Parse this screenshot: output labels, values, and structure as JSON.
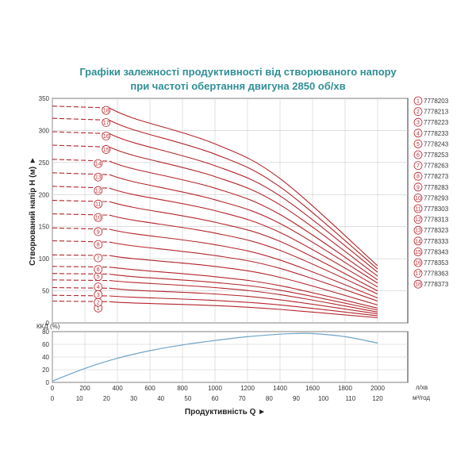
{
  "title_line1": "Графіки залежності продуктивності від створюваного напору",
  "title_line2": "при частоті обертання двигуна 2850 об/хв",
  "colors": {
    "curve": "#b3252b",
    "efficiency": "#6fa3c7",
    "title": "#2f8f96",
    "grid": "#cccccc"
  },
  "chart_data": [
    {
      "type": "line",
      "ylabel": "Створюваний напір Н (м) ►",
      "ylim": [
        0,
        350
      ],
      "yticks": [
        0,
        50,
        100,
        150,
        200,
        250,
        300,
        350
      ],
      "xlim": [
        0,
        2000
      ],
      "grid": true,
      "legend_position": "right",
      "dashed_segment_end_x": 350,
      "series": [
        {
          "name": "7778203",
          "marker": "1",
          "values": [
            [
              0,
              34
            ],
            [
              350,
              33
            ],
            [
              500,
              31
            ],
            [
              1000,
              27
            ],
            [
              1400,
              21
            ],
            [
              2000,
              8
            ]
          ]
        },
        {
          "name": "7778213",
          "marker": "2",
          "values": [
            [
              0,
              43
            ],
            [
              350,
              42
            ],
            [
              500,
              40
            ],
            [
              1000,
              35
            ],
            [
              1400,
              28
            ],
            [
              2000,
              11
            ]
          ]
        },
        {
          "name": "7778223",
          "marker": "3",
          "values": [
            [
              0,
              55
            ],
            [
              350,
              54
            ],
            [
              500,
              51
            ],
            [
              1000,
              45
            ],
            [
              1400,
              36
            ],
            [
              2000,
              14
            ]
          ]
        },
        {
          "name": "7778233",
          "marker": "4",
          "values": [
            [
              0,
              67
            ],
            [
              350,
              66
            ],
            [
              500,
              63
            ],
            [
              1000,
              55
            ],
            [
              1400,
              44
            ],
            [
              2000,
              17
            ]
          ]
        },
        {
          "name": "7778243",
          "marker": "5",
          "values": [
            [
              0,
              77
            ],
            [
              350,
              76
            ],
            [
              500,
              72
            ],
            [
              1000,
              63
            ],
            [
              1400,
              51
            ],
            [
              2000,
              20
            ]
          ]
        },
        {
          "name": "7778253",
          "marker": "6",
          "values": [
            [
              0,
              88
            ],
            [
              350,
              87
            ],
            [
              500,
              83
            ],
            [
              1000,
              72
            ],
            [
              1400,
              58
            ],
            [
              2000,
              23
            ]
          ]
        },
        {
          "name": "7778263",
          "marker": "7",
          "values": [
            [
              0,
              106
            ],
            [
              350,
              105
            ],
            [
              500,
              100
            ],
            [
              1000,
              88
            ],
            [
              1400,
              71
            ],
            [
              2000,
              28
            ]
          ]
        },
        {
          "name": "7778273",
          "marker": "8",
          "values": [
            [
              0,
              128
            ],
            [
              350,
              126
            ],
            [
              500,
              120
            ],
            [
              1000,
              105
            ],
            [
              1400,
              85
            ],
            [
              2000,
              34
            ]
          ]
        },
        {
          "name": "7778283",
          "marker": "9",
          "values": [
            [
              0,
              148
            ],
            [
              350,
              146
            ],
            [
              500,
              139
            ],
            [
              1000,
              122
            ],
            [
              1400,
              98
            ],
            [
              2000,
              39
            ]
          ]
        },
        {
          "name": "7778293",
          "marker": "10",
          "values": [
            [
              0,
              170
            ],
            [
              350,
              168
            ],
            [
              500,
              160
            ],
            [
              1000,
              140
            ],
            [
              1400,
              113
            ],
            [
              2000,
              45
            ]
          ]
        },
        {
          "name": "7778303",
          "marker": "11",
          "values": [
            [
              0,
              191
            ],
            [
              350,
              189
            ],
            [
              500,
              180
            ],
            [
              1000,
              157
            ],
            [
              1400,
              127
            ],
            [
              2000,
              50
            ]
          ]
        },
        {
          "name": "7778313",
          "marker": "12",
          "values": [
            [
              0,
              213
            ],
            [
              350,
              210
            ],
            [
              500,
              200
            ],
            [
              1000,
              175
            ],
            [
              1400,
              141
            ],
            [
              2000,
              56
            ]
          ]
        },
        {
          "name": "7778323",
          "marker": "13",
          "values": [
            [
              0,
              234
            ],
            [
              350,
              231
            ],
            [
              500,
              220
            ],
            [
              1000,
              192
            ],
            [
              1400,
              155
            ],
            [
              2000,
              62
            ]
          ]
        },
        {
          "name": "7778333",
          "marker": "14",
          "values": [
            [
              0,
              255
            ],
            [
              350,
              252
            ],
            [
              500,
              240
            ],
            [
              1000,
              210
            ],
            [
              1400,
              169
            ],
            [
              2000,
              67
            ]
          ]
        },
        {
          "name": "7778343",
          "marker": "15",
          "values": [
            [
              0,
              277
            ],
            [
              350,
              274
            ],
            [
              500,
              261
            ],
            [
              1000,
              228
            ],
            [
              1400,
              184
            ],
            [
              2000,
              73
            ]
          ]
        },
        {
          "name": "7778353",
          "marker": "16",
          "values": [
            [
              0,
              298
            ],
            [
              350,
              295
            ],
            [
              500,
              281
            ],
            [
              1000,
              245
            ],
            [
              1400,
              198
            ],
            [
              2000,
              79
            ]
          ]
        },
        {
          "name": "7778363",
          "marker": "17",
          "values": [
            [
              0,
              319
            ],
            [
              350,
              316
            ],
            [
              500,
              301
            ],
            [
              1000,
              263
            ],
            [
              1400,
              212
            ],
            [
              2000,
              84
            ]
          ]
        },
        {
          "name": "7778373",
          "marker": "18",
          "values": [
            [
              0,
              338
            ],
            [
              350,
              335
            ],
            [
              500,
              319
            ],
            [
              1000,
              279
            ],
            [
              1400,
              225
            ],
            [
              2000,
              89
            ]
          ]
        }
      ]
    },
    {
      "type": "line",
      "ylabel": "ККД (%)",
      "ylim": [
        0,
        80
      ],
      "yticks": [
        0,
        20,
        40,
        60,
        80
      ],
      "xlabel": "Продуктивність Q ►",
      "xlim": [
        0,
        2000
      ],
      "xticks_primary": [
        0,
        200,
        400,
        600,
        800,
        1000,
        1200,
        1400,
        1600,
        1800,
        2000
      ],
      "xticks_primary_unit": "л/хв",
      "xticks_secondary": [
        0,
        10,
        20,
        30,
        40,
        50,
        60,
        70,
        80,
        90,
        100,
        110,
        120
      ],
      "xticks_secondary_unit": "м³/год",
      "grid": true,
      "series": [
        {
          "values": [
            [
              0,
              2
            ],
            [
              200,
              22
            ],
            [
              400,
              38
            ],
            [
              600,
              50
            ],
            [
              800,
              59
            ],
            [
              1000,
              66
            ],
            [
              1200,
              72
            ],
            [
              1400,
              76
            ],
            [
              1500,
              77
            ],
            [
              1600,
              77
            ],
            [
              1800,
              72
            ],
            [
              2000,
              62
            ]
          ]
        }
      ]
    }
  ]
}
